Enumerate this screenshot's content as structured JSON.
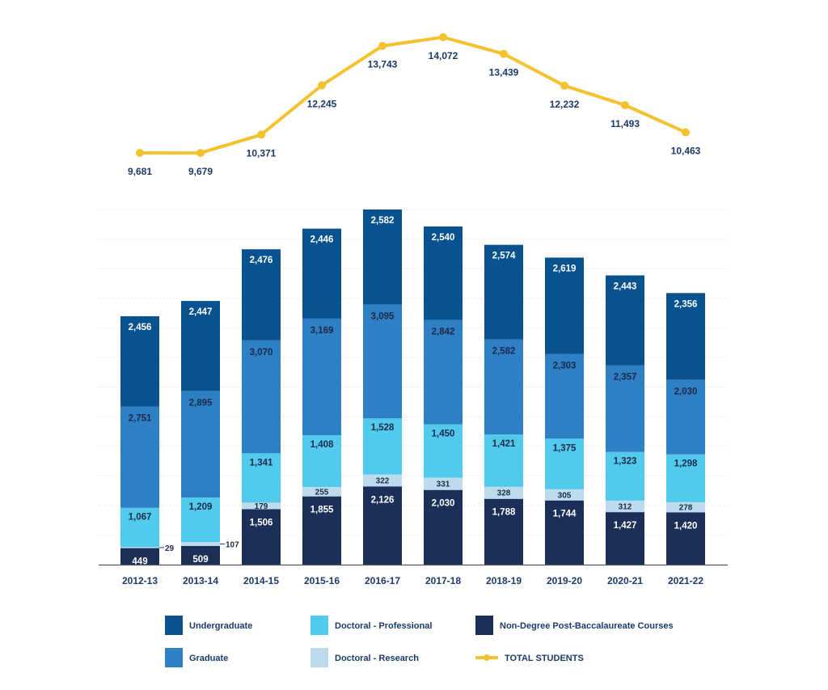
{
  "chart_data": {
    "type": "bar",
    "stacked": true,
    "categories": [
      "2012-13",
      "2013-14",
      "2014-15",
      "2015-16",
      "2016-17",
      "2017-18",
      "2018-19",
      "2019-20",
      "2020-21",
      "2021-22"
    ],
    "series": [
      {
        "name": "Non-Degree Post-Baccalaureate Courses",
        "color": "#1b2f58",
        "values": [
          449,
          509,
          1506,
          1855,
          2126,
          2030,
          1788,
          1744,
          1427,
          1420
        ]
      },
      {
        "name": "Doctoral - Research",
        "color": "#bcdcee",
        "values": [
          29,
          107,
          179,
          255,
          322,
          331,
          328,
          305,
          312,
          278
        ]
      },
      {
        "name": "Doctoral - Professional",
        "color": "#52caee",
        "values": [
          1067,
          1209,
          1341,
          1408,
          1528,
          1450,
          1421,
          1375,
          1323,
          1298
        ]
      },
      {
        "name": "Graduate",
        "color": "#2e7fc4",
        "values": [
          2751,
          2895,
          3070,
          3169,
          3095,
          2842,
          2582,
          2303,
          2357,
          2030
        ]
      },
      {
        "name": "Undergraduate",
        "color": "#08528f",
        "values": [
          2456,
          2447,
          2476,
          2446,
          2582,
          2540,
          2574,
          2619,
          2443,
          2356
        ]
      }
    ],
    "line": {
      "name": "TOTAL STUDENTS",
      "color": "#f6c12e",
      "values": [
        9681,
        9679,
        10371,
        12245,
        13743,
        14072,
        13439,
        12232,
        11493,
        10463
      ]
    },
    "legend": [
      {
        "name": "Undergraduate",
        "color": "#08528f",
        "marker": "square"
      },
      {
        "name": "Doctoral - Professional",
        "color": "#52caee",
        "marker": "square"
      },
      {
        "name": "Non-Degree Post-Baccalaureate Courses",
        "color": "#1b2f58",
        "marker": "square"
      },
      {
        "name": "Graduate",
        "color": "#2e7fc4",
        "marker": "square"
      },
      {
        "name": "Doctoral - Research",
        "color": "#bcdcee",
        "marker": "square"
      },
      {
        "name": "TOTAL STUDENTS",
        "color": "#f6c12e",
        "marker": "line"
      }
    ],
    "legend_position": "bottom",
    "grid": true,
    "title": "",
    "xlabel": "",
    "ylabel": ""
  }
}
